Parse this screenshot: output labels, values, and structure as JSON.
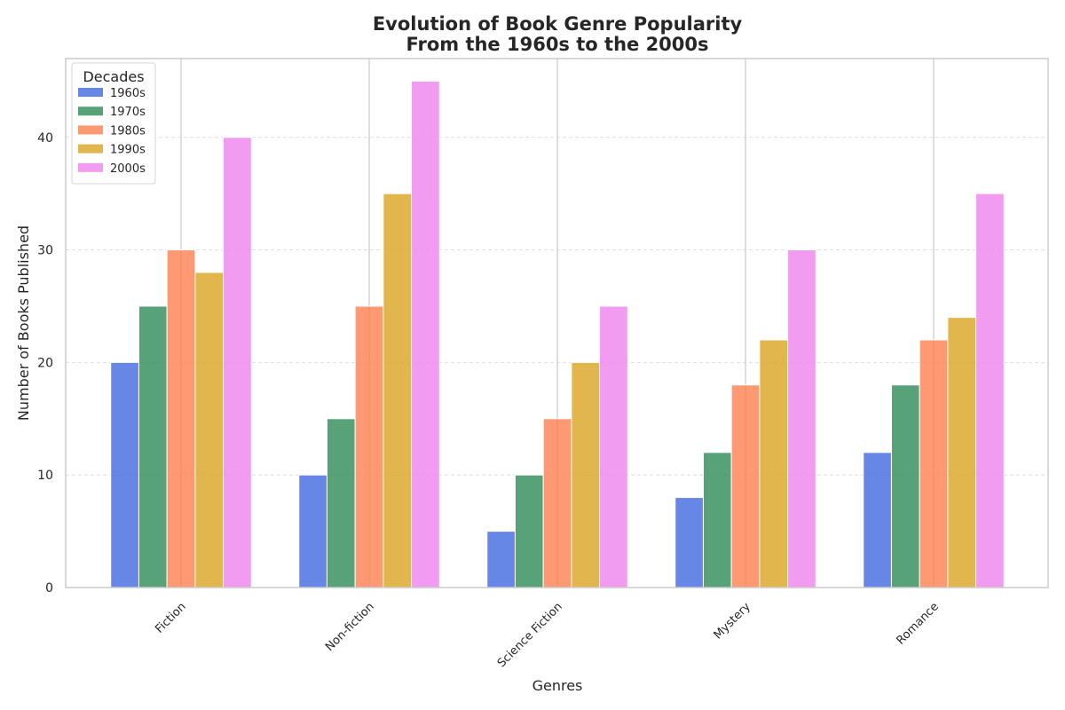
{
  "chart_data": {
    "type": "bar",
    "title": "Evolution of Book Genre Popularity",
    "subtitle": "From the 1960s to the 2000s",
    "xlabel": "Genres",
    "ylabel": "Number of Books Published",
    "categories": [
      "Fiction",
      "Non-fiction",
      "Science Fiction",
      "Mystery",
      "Romance"
    ],
    "ylim": [
      0,
      47
    ],
    "yticks": [
      0,
      10,
      20,
      30,
      40
    ],
    "grid": true,
    "legend": {
      "title": "Decades",
      "placement": "top-left"
    },
    "series": [
      {
        "name": "1960s",
        "color": "#4169E1",
        "values": [
          20,
          10,
          5,
          8,
          12
        ]
      },
      {
        "name": "1970s",
        "color": "#2E8B57",
        "values": [
          25,
          15,
          10,
          12,
          18
        ]
      },
      {
        "name": "1980s",
        "color": "#FF7F50",
        "values": [
          30,
          25,
          15,
          18,
          22
        ]
      },
      {
        "name": "1990s",
        "color": "#DAA520",
        "values": [
          28,
          35,
          20,
          22,
          24
        ]
      },
      {
        "name": "2000s",
        "color": "#EE82EE",
        "values": [
          40,
          45,
          25,
          30,
          35
        ]
      }
    ]
  }
}
